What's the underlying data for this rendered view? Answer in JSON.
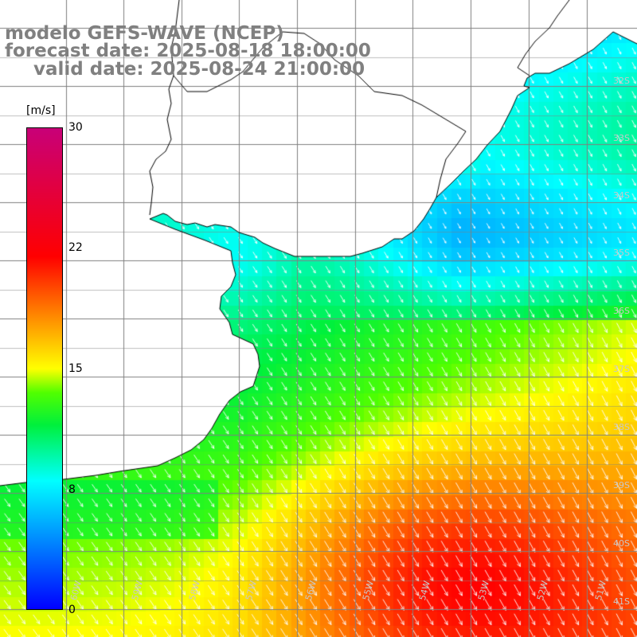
{
  "header": {
    "model_line": "modelo GEFS-WAVE (NCEP)",
    "forecast_line": "forecast date: 2025-08-18 18:00:00",
    "valid_line": "valid date: 2025-08-24 21:00:00"
  },
  "legend": {
    "unit": "[m/s]",
    "min": 0,
    "max": 30,
    "ticks": [
      "30",
      "22",
      "15",
      "8",
      "0"
    ],
    "tick_values": [
      30,
      22,
      15,
      8,
      0
    ]
  },
  "map": {
    "lat_labels": [
      "32S",
      "33S",
      "34S",
      "35S",
      "36S",
      "37S",
      "38S",
      "39S",
      "40S",
      "41S"
    ],
    "lon_labels": [
      "60W",
      "59W",
      "58W",
      "57W",
      "56W",
      "55W",
      "54W",
      "53W",
      "52W",
      "51W"
    ],
    "field": "wind speed",
    "wind_direction": "from north-northwest",
    "colors": {
      "land": "#ffffff",
      "grid": "#808080",
      "coast": "#000000",
      "arrows": "#ffffff"
    }
  }
}
